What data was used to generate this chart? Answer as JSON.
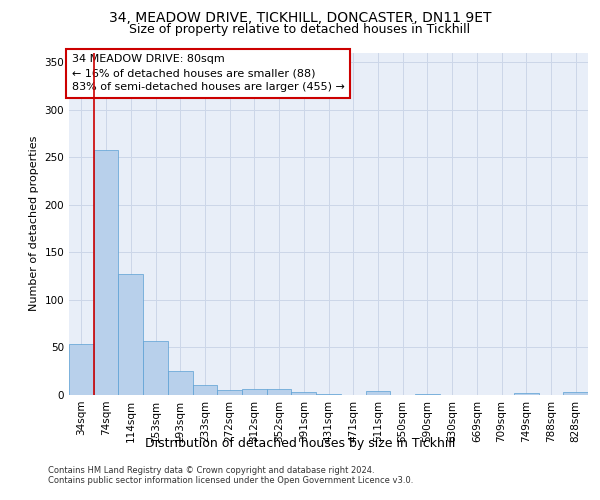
{
  "title_line1": "34, MEADOW DRIVE, TICKHILL, DONCASTER, DN11 9ET",
  "title_line2": "Size of property relative to detached houses in Tickhill",
  "xlabel": "Distribution of detached houses by size in Tickhill",
  "ylabel": "Number of detached properties",
  "categories": [
    "34sqm",
    "74sqm",
    "114sqm",
    "153sqm",
    "193sqm",
    "233sqm",
    "272sqm",
    "312sqm",
    "352sqm",
    "391sqm",
    "431sqm",
    "471sqm",
    "511sqm",
    "550sqm",
    "590sqm",
    "630sqm",
    "669sqm",
    "709sqm",
    "749sqm",
    "788sqm",
    "828sqm"
  ],
  "values": [
    54,
    257,
    127,
    57,
    25,
    11,
    5,
    6,
    6,
    3,
    1,
    0,
    4,
    0,
    1,
    0,
    0,
    0,
    2,
    0,
    3
  ],
  "bar_color": "#b8d0eb",
  "bar_edge_color": "#5a9fd4",
  "reference_line_x": 1.0,
  "reference_line_color": "#cc0000",
  "annotation_box_text": "34 MEADOW DRIVE: 80sqm\n← 16% of detached houses are smaller (88)\n83% of semi-detached houses are larger (455) →",
  "box_edge_color": "#cc0000",
  "ylim": [
    0,
    360
  ],
  "yticks": [
    0,
    50,
    100,
    150,
    200,
    250,
    300,
    350
  ],
  "grid_color": "#ccd6e8",
  "background_color": "#e8eef8",
  "footer_text": "Contains HM Land Registry data © Crown copyright and database right 2024.\nContains public sector information licensed under the Open Government Licence v3.0.",
  "title_fontsize": 10,
  "subtitle_fontsize": 9,
  "xlabel_fontsize": 9,
  "ylabel_fontsize": 8,
  "annotation_fontsize": 8,
  "tick_fontsize": 7.5,
  "footer_fontsize": 6
}
